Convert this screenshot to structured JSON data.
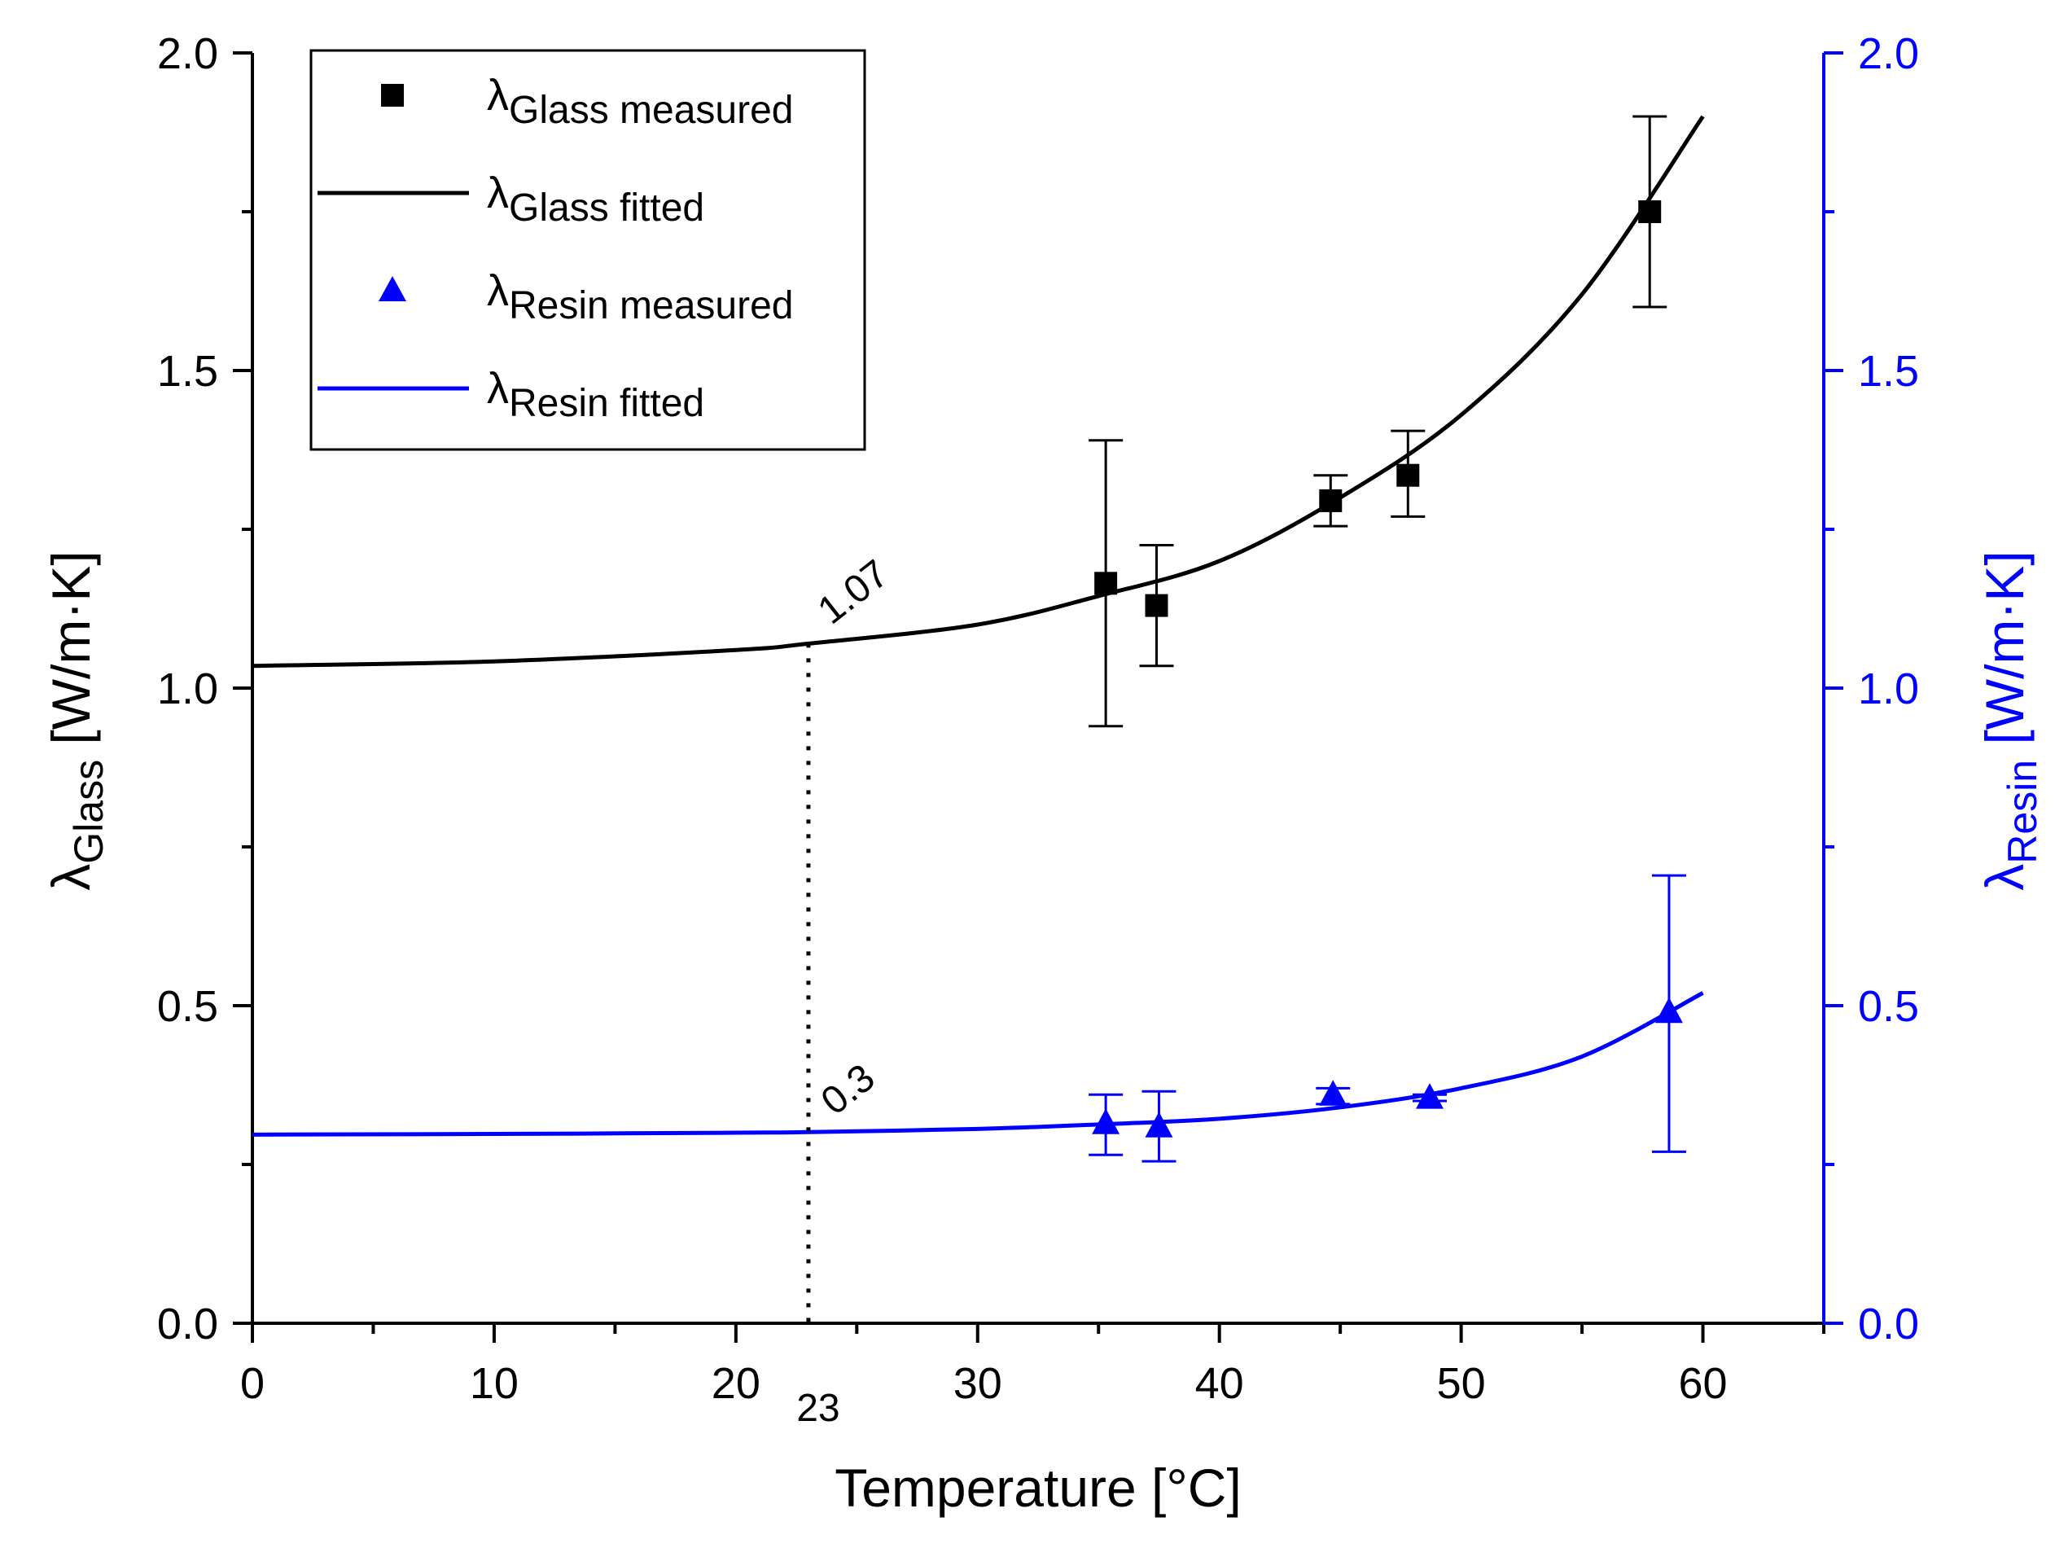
{
  "chart_data": {
    "type": "scatter",
    "xlabel": "Temperature [°C]",
    "ylabel_left": {
      "main": "λ",
      "sub": "Glass",
      "unit": " [W/m·K]"
    },
    "ylabel_right": {
      "main": "λ",
      "sub": "Resin",
      "unit": " [W/m·K]"
    },
    "xlim": [
      0,
      65
    ],
    "ylim_left": [
      0,
      2.0
    ],
    "ylim_right": [
      0,
      2.0
    ],
    "x_ticks": [
      0,
      10,
      20,
      30,
      40,
      50,
      60
    ],
    "x_tick_labels": [
      "0",
      "10",
      "20",
      "30",
      "40",
      "50",
      "60"
    ],
    "y_ticks": [
      0.0,
      0.5,
      1.0,
      1.5,
      2.0
    ],
    "y_tick_labels": [
      "0.0",
      "0.5",
      "1.0",
      "1.5",
      "2.0"
    ],
    "colors": {
      "glass": "#000000",
      "resin": "#0000ff"
    },
    "grid": false,
    "legend_position": "top-left",
    "legend": [
      {
        "main": "λ",
        "sub": "Glass measured",
        "marker": "square",
        "color": "#000000"
      },
      {
        "main": "λ",
        "sub": "Glass fitted",
        "marker": "line",
        "color": "#000000"
      },
      {
        "main": "λ",
        "sub": "Resin measured",
        "marker": "triangle",
        "color": "#0000ff"
      },
      {
        "main": "λ",
        "sub": "Resin fitted",
        "marker": "line",
        "color": "#0000ff"
      }
    ],
    "series": [
      {
        "name": "λGlass measured",
        "kind": "points",
        "marker": "square",
        "color": "#000000",
        "points": [
          {
            "x": 35.3,
            "y": 1.165,
            "err_low": 0.94,
            "err_high": 1.39
          },
          {
            "x": 37.4,
            "y": 1.13,
            "err_low": 1.035,
            "err_high": 1.225
          },
          {
            "x": 44.6,
            "y": 1.295,
            "err_low": 1.255,
            "err_high": 1.335
          },
          {
            "x": 47.8,
            "y": 1.335,
            "err_low": 1.27,
            "err_high": 1.405
          },
          {
            "x": 57.8,
            "y": 1.75,
            "err_low": 1.6,
            "err_high": 1.9
          }
        ]
      },
      {
        "name": "λGlass fitted",
        "kind": "line",
        "color": "#000000",
        "x": [
          0,
          10,
          20,
          23,
          30,
          35,
          40,
          45,
          50,
          55,
          60
        ],
        "y": [
          1.035,
          1.042,
          1.06,
          1.07,
          1.1,
          1.145,
          1.2,
          1.3,
          1.43,
          1.62,
          1.9
        ]
      },
      {
        "name": "λResin measured",
        "kind": "points",
        "marker": "triangle",
        "color": "#0000ff",
        "points": [
          {
            "x": 35.3,
            "y": 0.315,
            "err_low": 0.265,
            "err_high": 0.36
          },
          {
            "x": 37.5,
            "y": 0.31,
            "err_low": 0.255,
            "err_high": 0.365
          },
          {
            "x": 44.7,
            "y": 0.36,
            "err_low": 0.345,
            "err_high": 0.37
          },
          {
            "x": 48.7,
            "y": 0.355,
            "err_low": 0.35,
            "err_high": 0.36
          },
          {
            "x": 58.6,
            "y": 0.49,
            "err_low": 0.27,
            "err_high": 0.705
          }
        ]
      },
      {
        "name": "λResin fitted",
        "kind": "line",
        "color": "#0000ff",
        "x": [
          0,
          10,
          20,
          23,
          30,
          35,
          40,
          45,
          50,
          55,
          60
        ],
        "y": [
          0.297,
          0.298,
          0.3,
          0.301,
          0.306,
          0.313,
          0.322,
          0.34,
          0.37,
          0.42,
          0.52
        ]
      }
    ],
    "annotations": {
      "vline_x": 23,
      "vline_label": "23",
      "glass_label": "1.07",
      "glass_value": 1.07,
      "resin_label": "0.3",
      "resin_value": 0.3
    }
  }
}
